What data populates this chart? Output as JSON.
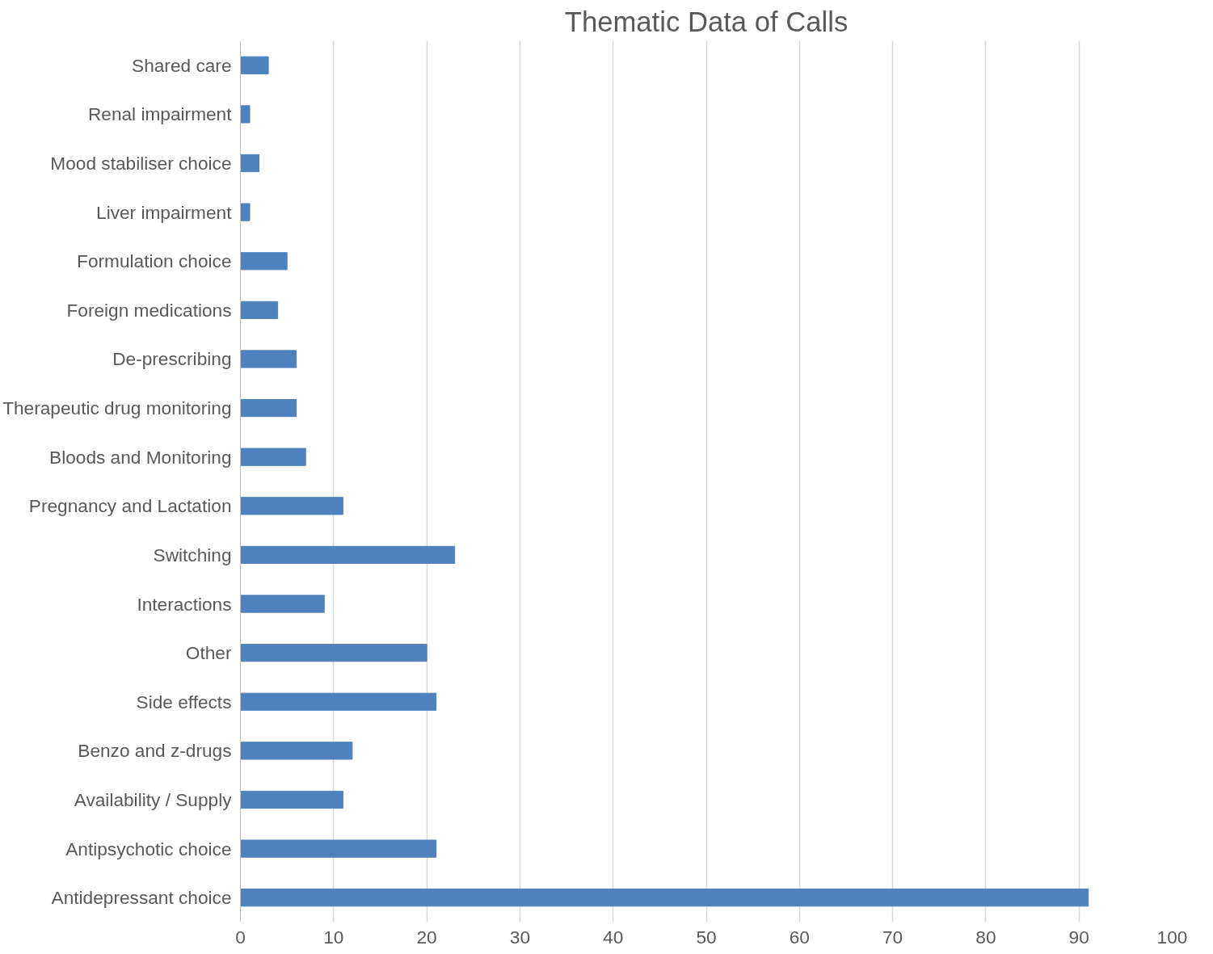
{
  "chart_data": {
    "type": "bar",
    "orientation": "horizontal",
    "title": "Thematic Data of Calls",
    "categories": [
      "Shared care",
      "Renal impairment",
      "Mood stabiliser choice",
      "Liver impairment",
      "Formulation choice",
      "Foreign medications",
      "De-prescribing",
      "Therapeutic drug monitoring",
      "Bloods and Monitoring",
      "Pregnancy and Lactation",
      "Switching",
      "Interactions",
      "Other",
      "Side effects",
      "Benzo and z-drugs",
      "Availability / Supply",
      "Antipsychotic choice",
      "Antidepressant choice"
    ],
    "values": [
      3,
      1,
      2,
      1,
      5,
      4,
      6,
      6,
      7,
      11,
      23,
      9,
      20,
      21,
      12,
      11,
      21,
      91
    ],
    "color": "#4f81bd",
    "xlim": [
      0,
      100
    ],
    "xticks": [
      0,
      10,
      20,
      30,
      40,
      50,
      60,
      70,
      80,
      90,
      100
    ],
    "grid": "x"
  }
}
